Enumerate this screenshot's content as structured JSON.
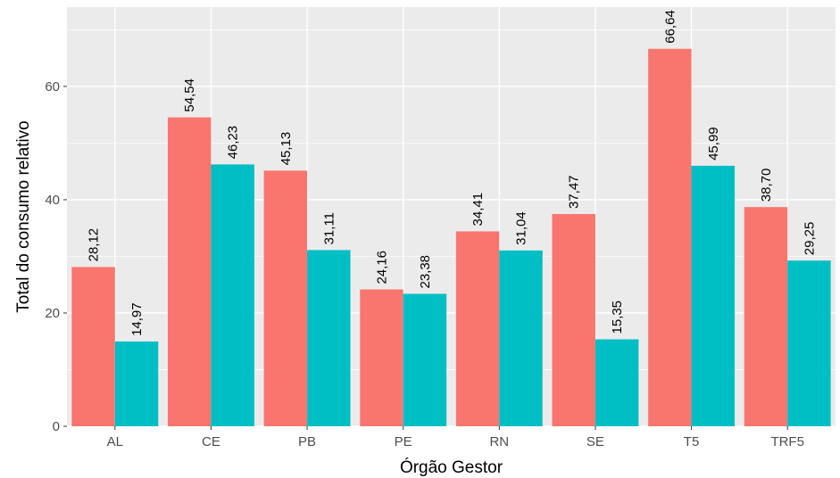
{
  "chart_data": {
    "type": "bar",
    "title": "",
    "xlabel": "Órgão Gestor",
    "ylabel": "Total do consumo relativo",
    "ylim": [
      0,
      74
    ],
    "yticks": [
      0,
      20,
      40,
      60
    ],
    "ytick_labels": [
      "0",
      "20",
      "40",
      "60"
    ],
    "grid": true,
    "legend": "none",
    "categories": [
      "AL",
      "CE",
      "PB",
      "PE",
      "RN",
      "SE",
      "T5",
      "TRF5"
    ],
    "series": [
      {
        "color": "#F8766D",
        "values": [
          28.12,
          54.54,
          45.13,
          24.16,
          34.41,
          37.47,
          66.64,
          38.7
        ],
        "labels": [
          "28,12",
          "54,54",
          "45,13",
          "24,16",
          "34,41",
          "37,47",
          "66,64",
          "38,70"
        ]
      },
      {
        "color": "#00BFC4",
        "values": [
          14.97,
          46.23,
          31.11,
          23.38,
          31.04,
          15.35,
          45.99,
          29.25
        ],
        "labels": [
          "14,97",
          "46,23",
          "31,11",
          "23,38",
          "31,04",
          "15,35",
          "45,99",
          "29,25"
        ]
      }
    ]
  }
}
